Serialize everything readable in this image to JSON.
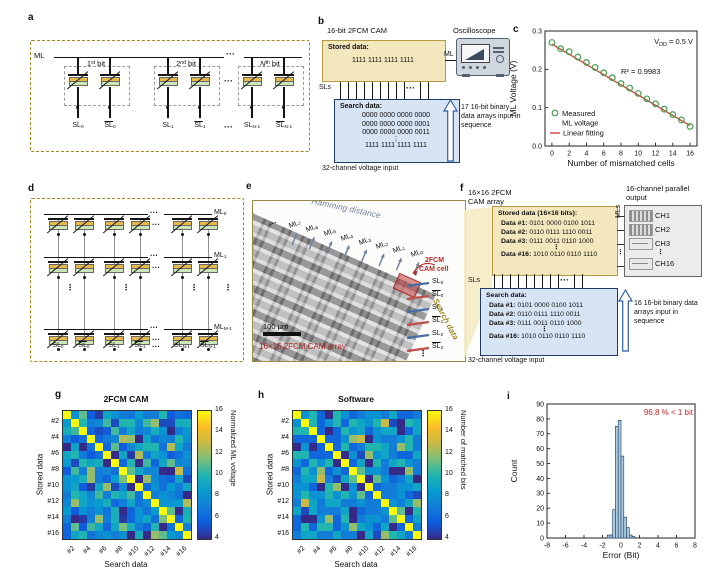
{
  "panels": {
    "a": "a",
    "b": "b",
    "c": "c",
    "d": "d",
    "e": "e",
    "f": "f",
    "g": "g",
    "h": "h",
    "i": "i"
  },
  "colors": {
    "gold_fill": "#f3e7bd",
    "gold_border": "#b49843",
    "blue_fill": "#d6e4f4",
    "blue_border": "#1f3a67",
    "dashed_border": "#a5861f",
    "red_accent": "#b13030",
    "scatter_green": "#44a048",
    "fit_red": "#d04040",
    "hist_fill": "#aecde3",
    "hist_edge": "#2b4a6b",
    "slate": "#71849e",
    "sl_blue": "#4a6fa5",
    "sl_red": "#c0504d",
    "search_gold": "#a08a28",
    "arrow_blue": "#2e5fa3"
  },
  "panel_a": {
    "ml": "ML",
    "dots": "···",
    "bit_labels": [
      {
        "num": "1",
        "sup": "st",
        "rest": " bit"
      },
      {
        "num": "2",
        "sup": "nd",
        "rest": " bit"
      },
      {
        "num": "N",
        "sup": "th",
        "rest": " bit"
      }
    ],
    "sl_labels": [
      {
        "base": "SL",
        "sub": "0",
        "bar": false
      },
      {
        "base": "SL",
        "sub": "0",
        "bar": true
      },
      {
        "base": "SL",
        "sub": "1",
        "bar": false
      },
      {
        "base": "SL",
        "sub": "1",
        "bar": true
      },
      {
        "base": "SL",
        "sub": "N-1",
        "bar": false
      },
      {
        "base": "SL",
        "sub": "N-1",
        "bar": true
      }
    ]
  },
  "panel_b": {
    "title": "16-bit 2FCM CAM",
    "stored_label": "Stored data:",
    "stored_value": "1111 1111 1111 1111",
    "ml": "ML",
    "oscilloscope": "Oscilloscope",
    "sls": "SLs",
    "dots": "···",
    "search_label": "Search data:",
    "search_lines": [
      "0000 0000 0000 0000",
      "0000 0000 0000 0001",
      "0000 0000 0000 0011",
      "⋮",
      "1111 1111 1111 1111"
    ],
    "bottom": "32-channel voltage input",
    "side_note": "17 16-bit binary data arrays input in sequence"
  },
  "panel_d": {
    "dots": "···",
    "vdots": "⋮",
    "ml_labels": [
      {
        "base": "ML",
        "sub": "0"
      },
      {
        "base": "ML",
        "sub": "1"
      },
      {
        "base": "ML",
        "sub": "M-1"
      }
    ],
    "sl_labels": [
      {
        "base": "SL",
        "sub": "0",
        "bar": false
      },
      {
        "base": "SL",
        "sub": "0",
        "bar": true
      },
      {
        "base": "SL",
        "sub": "1",
        "bar": false
      },
      {
        "base": "SL",
        "sub": "1",
        "bar": true
      },
      {
        "base": "SL",
        "sub": "N-1",
        "bar": false
      },
      {
        "base": "SL",
        "sub": "N-1",
        "bar": true
      }
    ]
  },
  "panel_e": {
    "hamming": "Hamming distance",
    "dots": "···",
    "vdots": "⋮",
    "ml_labels": [
      {
        "base": "ML",
        "sub": "7"
      },
      {
        "base": "ML",
        "sub": "6"
      },
      {
        "base": "ML",
        "sub": "5"
      },
      {
        "base": "ML",
        "sub": "4"
      },
      {
        "base": "ML",
        "sub": "3"
      },
      {
        "base": "ML",
        "sub": "2"
      },
      {
        "base": "ML",
        "sub": "1"
      },
      {
        "base": "ML",
        "sub": "0"
      }
    ],
    "cell_label_lines": [
      "2FCM",
      "CAM cell"
    ],
    "sl_labels": [
      {
        "base": "SL",
        "sub": "0",
        "bar": false
      },
      {
        "base": "SL",
        "sub": "0",
        "bar": true
      },
      {
        "base": "SL",
        "sub": "1",
        "bar": false
      },
      {
        "base": "SL",
        "sub": "1",
        "bar": true
      },
      {
        "base": "SL",
        "sub": "2",
        "bar": false
      },
      {
        "base": "SL",
        "sub": "2",
        "bar": true
      }
    ],
    "search_data": "Search data",
    "scalebar": "100 μm",
    "array_label": "16×16 2FCM CAM array"
  },
  "panel_f": {
    "title_line1": "16×16 2FCM",
    "title_line2": "CAM array",
    "stored_label": "Stored data (16×16 bits):",
    "data_rows": [
      {
        "name": "Data #1:",
        "bits": "0101 0000 0100 1011"
      },
      {
        "name": "Data #2:",
        "bits": "0110 0111 1110 0011"
      },
      {
        "name": "Data #3:",
        "bits": "0111 0011 0110 1000"
      },
      {
        "name": "Data #16:",
        "bits": "1010 0110 0110 1110"
      }
    ],
    "vdots": "⋮",
    "dots": "···",
    "mls": "MLs",
    "output_label": "16-channel parallel output",
    "channels": [
      "CH1",
      "CH2",
      "CH3",
      "CH16"
    ],
    "sls": "SLs",
    "search_label": "Search data:",
    "side_note": "16 16-bit binary data arrays input in sequence",
    "bottom": "32-channel voltage input"
  },
  "colormap": {
    "name": "parula-like",
    "stops": [
      [
        0,
        "#352a87"
      ],
      [
        0.125,
        "#0f5cdd"
      ],
      [
        0.25,
        "#127dd8"
      ],
      [
        0.375,
        "#079ccf"
      ],
      [
        0.5,
        "#21b5b0"
      ],
      [
        0.625,
        "#7cbf7b"
      ],
      [
        0.75,
        "#c9ba45"
      ],
      [
        0.875,
        "#f9bd26"
      ],
      [
        1,
        "#f9fb0e"
      ]
    ]
  },
  "chart_data": [
    {
      "panel": "c",
      "type": "scatter",
      "xlabel": "Number of mismatched cells",
      "ylabel": "ML Voltage (V)",
      "xlim": [
        -0.8,
        16.8
      ],
      "ylim": [
        0,
        0.3
      ],
      "xticks": [
        0,
        2,
        4,
        6,
        8,
        10,
        12,
        14,
        16
      ],
      "yticks": [
        "0.0",
        "0.1",
        "0.2",
        "0.3"
      ],
      "x": [
        0,
        1,
        2,
        3,
        4,
        5,
        6,
        7,
        8,
        9,
        10,
        11,
        12,
        13,
        14,
        15,
        16
      ],
      "measured": [
        0.27,
        0.254,
        0.246,
        0.232,
        0.218,
        0.205,
        0.191,
        0.178,
        0.163,
        0.151,
        0.137,
        0.123,
        0.11,
        0.096,
        0.082,
        0.068,
        0.051
      ],
      "fit": {
        "x0": 0,
        "y0": 0.266,
        "x1": 16,
        "y1": 0.053
      },
      "annotation_vdd": {
        "pre": "V",
        "sub": "DD",
        "post": " = 0.5 V"
      },
      "annotation_r2": "R² = 0.9983",
      "legend": {
        "marker_label_lines": [
          "Measured",
          "ML voltage"
        ],
        "line_label": "Linear fitting"
      }
    },
    {
      "panel": "g",
      "type": "heatmap",
      "title": "2FCM CAM",
      "xlabel": "Search data",
      "ylabel": "Stored data",
      "tick_labels": [
        "#2",
        "#4",
        "#6",
        "#8",
        "#10",
        "#12",
        "#14",
        "#16"
      ],
      "colorbar_label": "Normalized ML voltage",
      "colorbar_ticks": [
        4,
        6,
        8,
        10,
        12,
        14,
        16
      ],
      "clim": [
        4,
        16
      ],
      "values_note": "normalized ML voltage = matched bits between stored and search data, diagonal = 16",
      "noise": {
        "a": 3,
        "b": 7,
        "mod": 5,
        "scale": 0.5
      }
    },
    {
      "panel": "h",
      "type": "heatmap",
      "title": "Software",
      "xlabel": "Search data",
      "ylabel": "Stored data",
      "tick_labels": [
        "#2",
        "#4",
        "#6",
        "#8",
        "#10",
        "#12",
        "#14",
        "#16"
      ],
      "colorbar_label": "Number of matched bits",
      "colorbar_ticks": [
        4,
        6,
        8,
        10,
        12,
        14,
        16
      ],
      "clim": [
        4,
        16
      ],
      "values_note": "number of matched bits = 16 - hamming(pattern_i, pattern_j)",
      "patterns": [
        "0101000001001011",
        "0110011111100011",
        "0111001101101000",
        "1100101000110101",
        "0010110110010110",
        "1001011011000011",
        "0110100101011100",
        "1110001010110001",
        "0100101100110001",
        "1011010010000010",
        "0100101111010010",
        "0010011101100111",
        "1001100101101110",
        "1000110100011110",
        "0110010010110101",
        "1010011001101110"
      ]
    },
    {
      "panel": "i",
      "type": "bar",
      "xlabel": "Error (Bit)",
      "ylabel": "Count",
      "xlim": [
        -8,
        8
      ],
      "ylim": [
        0,
        90
      ],
      "xticks": [
        -8,
        -6,
        -4,
        -2,
        0,
        2,
        4,
        6,
        8
      ],
      "yticks": [
        0,
        10,
        20,
        30,
        40,
        50,
        60,
        70,
        80,
        90
      ],
      "bin_centers": [
        -1.35,
        -1.05,
        -0.75,
        -0.45,
        -0.15,
        0.15,
        0.45,
        0.75,
        1.05,
        1.35
      ],
      "bin_width": 0.3,
      "counts": [
        2,
        2,
        19,
        75,
        79,
        55,
        14,
        7,
        2,
        1
      ],
      "annotation": "96.8 % < 1 bit"
    }
  ]
}
